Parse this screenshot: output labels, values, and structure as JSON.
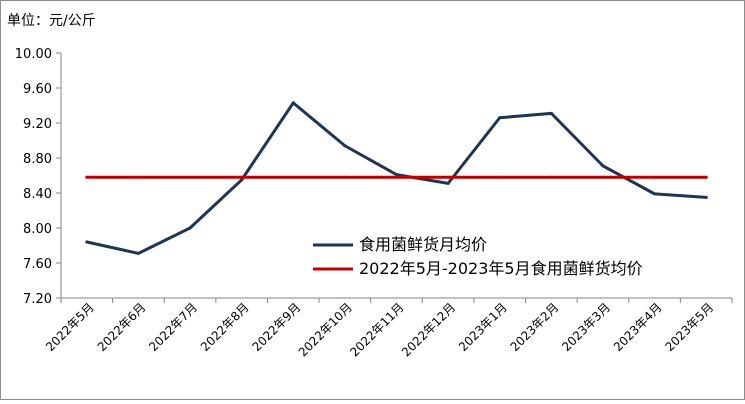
{
  "chart_data": {
    "type": "line",
    "unit_label": "单位：元/公斤",
    "categories": [
      "2022年5月",
      "2022年6月",
      "2022年7月",
      "2022年8月",
      "2022年9月",
      "2022年10月",
      "2022年11月",
      "2022年12月",
      "2023年1月",
      "2023年2月",
      "2023年3月",
      "2023年4月",
      "2023年5月"
    ],
    "yticks": [
      "10.00",
      "9.60",
      "9.20",
      "8.80",
      "8.40",
      "8.00",
      "7.60",
      "7.20"
    ],
    "ylim": [
      7.2,
      10.0
    ],
    "series": [
      {
        "name": "食用菌鲜货月均价",
        "color": "#1f3552",
        "values": [
          7.84,
          7.71,
          8.0,
          8.55,
          9.43,
          8.94,
          8.61,
          8.51,
          9.26,
          9.31,
          8.71,
          8.39,
          8.35
        ]
      },
      {
        "name": "2022年5月-2023年5月食用菌鲜货均价",
        "color": "#c00000",
        "values": [
          8.58,
          8.58,
          8.58,
          8.58,
          8.58,
          8.58,
          8.58,
          8.58,
          8.58,
          8.58,
          8.58,
          8.58,
          8.58
        ]
      }
    ],
    "grid": false,
    "legend_position": "inside-bottom-right"
  }
}
